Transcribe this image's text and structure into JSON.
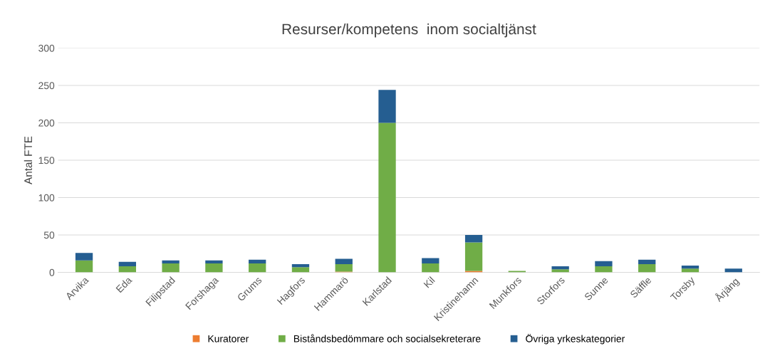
{
  "chart_data": {
    "type": "bar",
    "title": "Resurser/kompetens  inom socialtjänst",
    "ylabel": "Antal FTE",
    "categories": [
      "Arvika",
      "Eda",
      "Filipstad",
      "Forshaga",
      "Grums",
      "Hagfors",
      "Hammarö",
      "Karlstad",
      "Kil",
      "Kristinehamn",
      "Munkfors",
      "Storfors",
      "Sunne",
      "Säffle",
      "Torsby",
      "Årjäng"
    ],
    "stacked": true,
    "series": [
      {
        "name": "Kuratorer",
        "color": "#ed7d31",
        "values": [
          0,
          0,
          0,
          0,
          0,
          0,
          1,
          0,
          0,
          2,
          0,
          0,
          0,
          0,
          0,
          0
        ]
      },
      {
        "name": "Biståndsbedömmare och socialsekreterare",
        "color": "#70ad47",
        "values": [
          16,
          8,
          12,
          12,
          12,
          7,
          10,
          200,
          12,
          38,
          2,
          4,
          8,
          11,
          5,
          0
        ]
      },
      {
        "name": "Övriga yrkeskategorier",
        "color": "#255e91",
        "values": [
          10,
          6,
          4,
          4,
          5,
          4,
          7,
          44,
          7,
          10,
          0,
          4,
          7,
          6,
          4,
          5
        ]
      }
    ],
    "ylim": [
      0,
      300
    ],
    "yticks": [
      0,
      50,
      100,
      150,
      200,
      250,
      300
    ],
    "grid": "y",
    "legend": "bottom"
  }
}
